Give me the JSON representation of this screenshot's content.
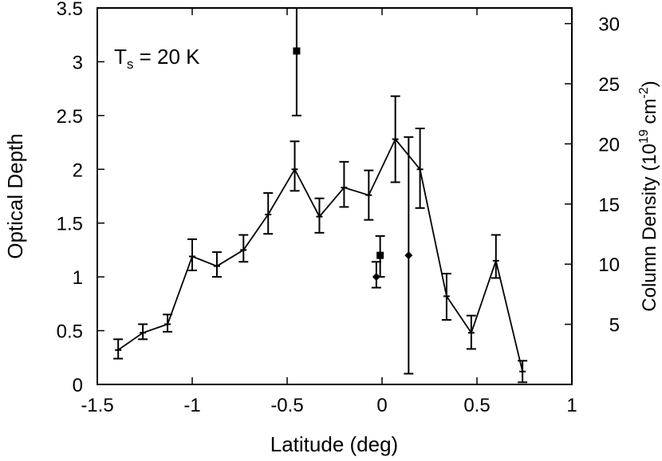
{
  "chart_data": {
    "type": "line",
    "annotation": {
      "prefix": "T",
      "subscript": "s",
      "suffix": " = 20 K"
    },
    "xlabel": "Latitude (deg)",
    "ylabel": "Optical Depth",
    "ylabel_right": {
      "prefix": "Column Density (10",
      "sup1": "19",
      "mid": " cm",
      "sup2": "-2",
      "suffix": ")"
    },
    "xlim": [
      -1.5,
      1
    ],
    "ylim": [
      0,
      3.5
    ],
    "y2lim": [
      0,
      31.3
    ],
    "x_ticks": [
      -1.5,
      -1,
      -0.5,
      0,
      0.5,
      1
    ],
    "x_tick_labels": [
      "-1.5",
      "-1",
      "-0.5",
      "0",
      "0.5",
      "1"
    ],
    "y_ticks": [
      0,
      0.5,
      1,
      1.5,
      2,
      2.5,
      3,
      3.5
    ],
    "y_tick_labels": [
      "0",
      "0.5",
      "1",
      "1.5",
      "2",
      "2.5",
      "3",
      "3.5"
    ],
    "y2_ticks": [
      5,
      10,
      15,
      20,
      25,
      30
    ],
    "y2_tick_labels": [
      "5",
      "10",
      "15",
      "20",
      "25",
      "30"
    ],
    "grid": false,
    "legend": "none",
    "series": [
      {
        "style": "line-errorbars",
        "points": [
          {
            "x": -1.39,
            "y": 0.32,
            "err": [
              0.08,
              0.1
            ]
          },
          {
            "x": -1.26,
            "y": 0.48,
            "err": [
              0.06,
              0.08
            ]
          },
          {
            "x": -1.13,
            "y": 0.56,
            "err": [
              0.07,
              0.09
            ]
          },
          {
            "x": -1.0,
            "y": 1.19,
            "err": [
              0.13,
              0.16
            ]
          },
          {
            "x": -0.87,
            "y": 1.1,
            "err": [
              0.1,
              0.13
            ]
          },
          {
            "x": -0.73,
            "y": 1.25,
            "err": [
              0.11,
              0.14
            ]
          },
          {
            "x": -0.6,
            "y": 1.58,
            "err": [
              0.18,
              0.2
            ]
          },
          {
            "x": -0.46,
            "y": 2.0,
            "err": [
              0.2,
              0.26
            ]
          },
          {
            "x": -0.33,
            "y": 1.56,
            "err": [
              0.15,
              0.17
            ]
          },
          {
            "x": -0.2,
            "y": 1.83,
            "err": [
              0.18,
              0.24
            ]
          },
          {
            "x": -0.07,
            "y": 1.76,
            "err": [
              0.23,
              0.23
            ]
          },
          {
            "x": 0.07,
            "y": 2.28,
            "err": [
              0.4,
              0.4
            ]
          },
          {
            "x": 0.2,
            "y": 2.0,
            "err": [
              0.36,
              0.38
            ]
          },
          {
            "x": 0.34,
            "y": 0.82,
            "err": [
              0.22,
              0.21
            ]
          },
          {
            "x": 0.47,
            "y": 0.48,
            "err": [
              0.15,
              0.16
            ]
          },
          {
            "x": 0.6,
            "y": 1.15,
            "err": [
              0.16,
              0.24
            ]
          },
          {
            "x": 0.74,
            "y": 0.12,
            "err": [
              0.1,
              0.1
            ]
          }
        ]
      },
      {
        "style": "square-markers",
        "points": [
          {
            "x": -0.45,
            "y": 3.1,
            "err": [
              0.6,
              0.4
            ]
          },
          {
            "x": -0.01,
            "y": 1.2,
            "err": [
              0.2,
              0.18
            ]
          }
        ]
      },
      {
        "style": "diamond-markers",
        "points": [
          {
            "x": -0.03,
            "y": 1.0,
            "err": [
              0.1,
              0.14
            ]
          },
          {
            "x": 0.14,
            "y": 1.2,
            "err": [
              1.1,
              1.1
            ]
          }
        ]
      }
    ]
  }
}
